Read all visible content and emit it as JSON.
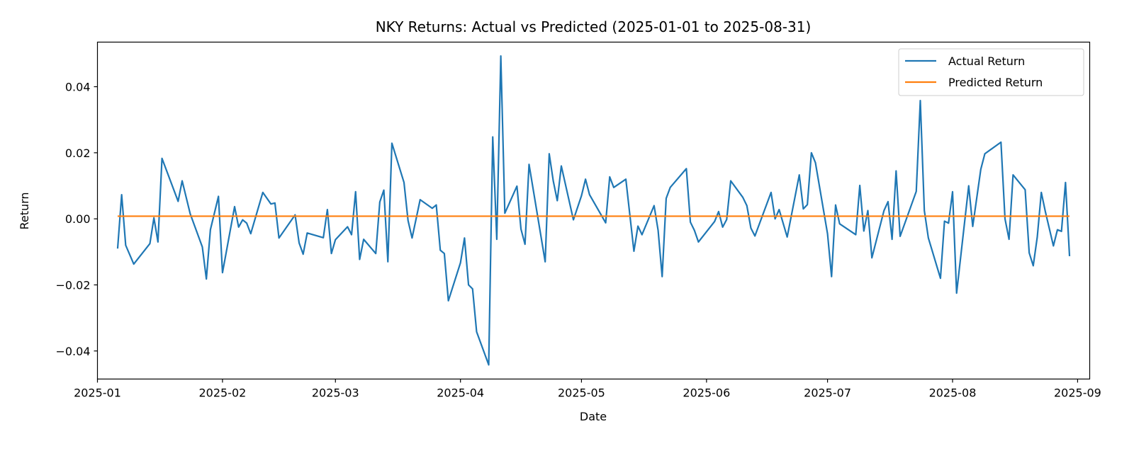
{
  "chart_data": {
    "type": "line",
    "title": "NKY Returns: Actual vs Predicted (2025-01-01 to 2025-08-31)",
    "xlabel": "Date",
    "ylabel": "Return",
    "xlim": [
      "2025-01-01",
      "2025-09-04"
    ],
    "ylim": [
      -0.0485,
      0.0535
    ],
    "x_ticks": [
      "2025-01",
      "2025-02",
      "2025-03",
      "2025-04",
      "2025-05",
      "2025-06",
      "2025-07",
      "2025-08",
      "2025-09"
    ],
    "y_ticks": [
      {
        "value": 0.04,
        "label": "0.04"
      },
      {
        "value": 0.02,
        "label": "0.02"
      },
      {
        "value": 0.0,
        "label": "0.00"
      },
      {
        "value": -0.02,
        "label": "−0.02"
      },
      {
        "value": -0.04,
        "label": "−0.04"
      }
    ],
    "legend_position": "top-right",
    "grid": false,
    "series": [
      {
        "name": "Actual Return",
        "color": "#1f77b4",
        "points": [
          [
            "2025-01-06",
            -0.009
          ],
          [
            "2025-01-07",
            0.0073
          ],
          [
            "2025-01-08",
            -0.008
          ],
          [
            "2025-01-10",
            -0.0137
          ],
          [
            "2025-01-14",
            -0.0075
          ],
          [
            "2025-01-15",
            0.0003
          ],
          [
            "2025-01-16",
            -0.007
          ],
          [
            "2025-01-17",
            0.0183
          ],
          [
            "2025-01-21",
            0.0053
          ],
          [
            "2025-01-22",
            0.0115
          ],
          [
            "2025-01-24",
            0.0015
          ],
          [
            "2025-01-27",
            -0.0085
          ],
          [
            "2025-01-28",
            -0.0182
          ],
          [
            "2025-01-29",
            -0.0033
          ],
          [
            "2025-01-31",
            0.0068
          ],
          [
            "2025-02-01",
            -0.0163
          ],
          [
            "2025-02-04",
            0.0037
          ],
          [
            "2025-02-05",
            -0.0025
          ],
          [
            "2025-02-06",
            -0.0003
          ],
          [
            "2025-02-07",
            -0.0013
          ],
          [
            "2025-02-08",
            -0.0045
          ],
          [
            "2025-02-11",
            0.008
          ],
          [
            "2025-02-13",
            0.0045
          ],
          [
            "2025-02-14",
            0.0048
          ],
          [
            "2025-02-15",
            -0.0058
          ],
          [
            "2025-02-19",
            0.0012
          ],
          [
            "2025-02-20",
            -0.0073
          ],
          [
            "2025-02-21",
            -0.0107
          ],
          [
            "2025-02-22",
            -0.0043
          ],
          [
            "2025-02-26",
            -0.0057
          ],
          [
            "2025-02-27",
            0.0028
          ],
          [
            "2025-02-28",
            -0.0105
          ],
          [
            "2025-03-01",
            -0.0063
          ],
          [
            "2025-03-04",
            -0.0024
          ],
          [
            "2025-03-05",
            -0.0048
          ],
          [
            "2025-03-06",
            0.0082
          ],
          [
            "2025-03-07",
            -0.0123
          ],
          [
            "2025-03-08",
            -0.0062
          ],
          [
            "2025-03-11",
            -0.0105
          ],
          [
            "2025-03-12",
            0.0051
          ],
          [
            "2025-03-13",
            0.0087
          ],
          [
            "2025-03-14",
            -0.013
          ],
          [
            "2025-03-15",
            0.0229
          ],
          [
            "2025-03-18",
            0.011
          ],
          [
            "2025-03-19",
            -0.0005
          ],
          [
            "2025-03-20",
            -0.0058
          ],
          [
            "2025-03-22",
            0.0058
          ],
          [
            "2025-03-25",
            0.0032
          ],
          [
            "2025-03-26",
            0.0042
          ],
          [
            "2025-03-27",
            -0.0095
          ],
          [
            "2025-03-28",
            -0.0105
          ],
          [
            "2025-03-29",
            -0.0248
          ],
          [
            "2025-04-01",
            -0.0133
          ],
          [
            "2025-04-02",
            -0.0058
          ],
          [
            "2025-04-03",
            -0.02
          ],
          [
            "2025-04-04",
            -0.0212
          ],
          [
            "2025-04-05",
            -0.0342
          ],
          [
            "2025-04-08",
            -0.0442
          ],
          [
            "2025-04-09",
            0.0248
          ],
          [
            "2025-04-10",
            -0.0062
          ],
          [
            "2025-04-11",
            0.0493
          ],
          [
            "2025-04-12",
            0.0017
          ],
          [
            "2025-04-15",
            0.0099
          ],
          [
            "2025-04-16",
            -0.0031
          ],
          [
            "2025-04-17",
            -0.0077
          ],
          [
            "2025-04-18",
            0.0165
          ],
          [
            "2025-04-22",
            -0.013
          ],
          [
            "2025-04-23",
            0.0197
          ],
          [
            "2025-04-24",
            0.0115
          ],
          [
            "2025-04-25",
            0.0055
          ],
          [
            "2025-04-26",
            0.016
          ],
          [
            "2025-04-29",
            -0.0003
          ],
          [
            "2025-05-01",
            0.007
          ],
          [
            "2025-05-02",
            0.012
          ],
          [
            "2025-05-03",
            0.0073
          ],
          [
            "2025-05-07",
            -0.0012
          ],
          [
            "2025-05-08",
            0.0127
          ],
          [
            "2025-05-09",
            0.0095
          ],
          [
            "2025-05-12",
            0.012
          ],
          [
            "2025-05-14",
            -0.0098
          ],
          [
            "2025-05-15",
            -0.0022
          ],
          [
            "2025-05-16",
            -0.0048
          ],
          [
            "2025-05-19",
            0.004
          ],
          [
            "2025-05-20",
            -0.0035
          ],
          [
            "2025-05-21",
            -0.0175
          ],
          [
            "2025-05-22",
            0.0062
          ],
          [
            "2025-05-23",
            0.0095
          ],
          [
            "2025-05-27",
            0.0152
          ],
          [
            "2025-05-28",
            -0.001
          ],
          [
            "2025-05-29",
            -0.0035
          ],
          [
            "2025-05-30",
            -0.007
          ],
          [
            "2025-06-03",
            -0.0008
          ],
          [
            "2025-06-04",
            0.0022
          ],
          [
            "2025-06-05",
            -0.0025
          ],
          [
            "2025-06-06",
            -0.0002
          ],
          [
            "2025-06-07",
            0.0115
          ],
          [
            "2025-06-10",
            0.0065
          ],
          [
            "2025-06-11",
            0.004
          ],
          [
            "2025-06-12",
            -0.0028
          ],
          [
            "2025-06-13",
            -0.0052
          ],
          [
            "2025-06-17",
            0.008
          ],
          [
            "2025-06-18",
            0.0
          ],
          [
            "2025-06-19",
            0.0028
          ],
          [
            "2025-06-21",
            -0.0055
          ],
          [
            "2025-06-24",
            0.0133
          ],
          [
            "2025-06-25",
            0.003
          ],
          [
            "2025-06-26",
            0.0043
          ],
          [
            "2025-06-27",
            0.02
          ],
          [
            "2025-06-28",
            0.017
          ],
          [
            "2025-07-01",
            -0.0045
          ],
          [
            "2025-07-02",
            -0.0175
          ],
          [
            "2025-07-03",
            0.0042
          ],
          [
            "2025-07-04",
            -0.0015
          ],
          [
            "2025-07-08",
            -0.0048
          ],
          [
            "2025-07-09",
            0.0101
          ],
          [
            "2025-07-10",
            -0.0037
          ],
          [
            "2025-07-11",
            0.0025
          ],
          [
            "2025-07-12",
            -0.0118
          ],
          [
            "2025-07-15",
            0.0025
          ],
          [
            "2025-07-16",
            0.0052
          ],
          [
            "2025-07-17",
            -0.0062
          ],
          [
            "2025-07-18",
            0.0145
          ],
          [
            "2025-07-19",
            -0.0053
          ],
          [
            "2025-07-23",
            0.0083
          ],
          [
            "2025-07-24",
            0.0358
          ],
          [
            "2025-07-25",
            0.0025
          ],
          [
            "2025-07-26",
            -0.0058
          ],
          [
            "2025-07-29",
            -0.018
          ],
          [
            "2025-07-30",
            -0.0007
          ],
          [
            "2025-07-31",
            -0.0013
          ],
          [
            "2025-08-01",
            0.0082
          ],
          [
            "2025-08-02",
            -0.0225
          ],
          [
            "2025-08-05",
            0.01
          ],
          [
            "2025-08-06",
            -0.0023
          ],
          [
            "2025-08-08",
            0.015
          ],
          [
            "2025-08-09",
            0.0197
          ],
          [
            "2025-08-13",
            0.0232
          ],
          [
            "2025-08-14",
            0.0
          ],
          [
            "2025-08-15",
            -0.0062
          ],
          [
            "2025-08-16",
            0.0133
          ],
          [
            "2025-08-19",
            0.0088
          ],
          [
            "2025-08-20",
            -0.0103
          ],
          [
            "2025-08-21",
            -0.0142
          ],
          [
            "2025-08-22",
            -0.0055
          ],
          [
            "2025-08-23",
            0.008
          ],
          [
            "2025-08-24",
            0.0022
          ],
          [
            "2025-08-26",
            -0.0082
          ],
          [
            "2025-08-27",
            -0.0033
          ],
          [
            "2025-08-28",
            -0.0038
          ],
          [
            "2025-08-29",
            0.011
          ],
          [
            "2025-08-30",
            -0.0113
          ]
        ]
      },
      {
        "name": "Predicted Return",
        "color": "#ff7f0e",
        "points": [
          [
            "2025-01-06",
            0.0008
          ],
          [
            "2025-08-30",
            0.0008
          ]
        ]
      }
    ]
  }
}
